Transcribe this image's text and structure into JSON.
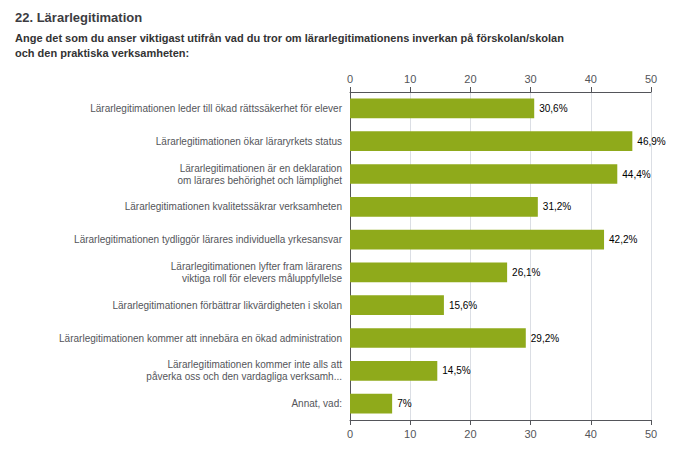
{
  "chart_data": {
    "type": "bar",
    "orientation": "horizontal",
    "title": "22. Lärarlegitimation",
    "subtitle": "Ange det som du anser viktigast utifrån vad du tror om lärarlegitimationens inverkan på förskolan/skolan\noch den praktiska verksamheten:",
    "categories": [
      "Lärarlegitimationen leder till ökad rättssäkerhet för elever",
      "Lärarlegitimationen ökar läraryrkets status",
      "Lärarlegitimationen är en deklaration\nom lärares behörighet och lämplighet",
      "Lärarlegitimationen kvalitetssäkrar verksamheten",
      "Lärarlegitimationen tydliggör lärares individuella yrkesansvar",
      "Lärarlegitimationen lyfter fram lärarens\nviktiga roll för elevers måluppfyllelse",
      "Lärarlegitimationen förbättrar likvärdigheten i skolan",
      "Lärarlegitimationen kommer att innebära en ökad administration",
      "Lärarlegitimationen kommer inte alls att\npåverka oss och den vardagliga verksamh...",
      "Annat, vad:"
    ],
    "values": [
      30.6,
      46.9,
      44.4,
      31.2,
      42.2,
      26.1,
      15.6,
      29.2,
      14.5,
      7.0
    ],
    "value_labels": [
      "30,6%",
      "46,9%",
      "44,4%",
      "31,2%",
      "42,2%",
      "26,1%",
      "15,6%",
      "29,2%",
      "14,5%",
      "7%"
    ],
    "data_labels": true,
    "color": "#8faa1b",
    "xlim": [
      0,
      50
    ],
    "xticks": [
      0,
      10,
      20,
      30,
      40,
      50
    ],
    "grid": true
  }
}
